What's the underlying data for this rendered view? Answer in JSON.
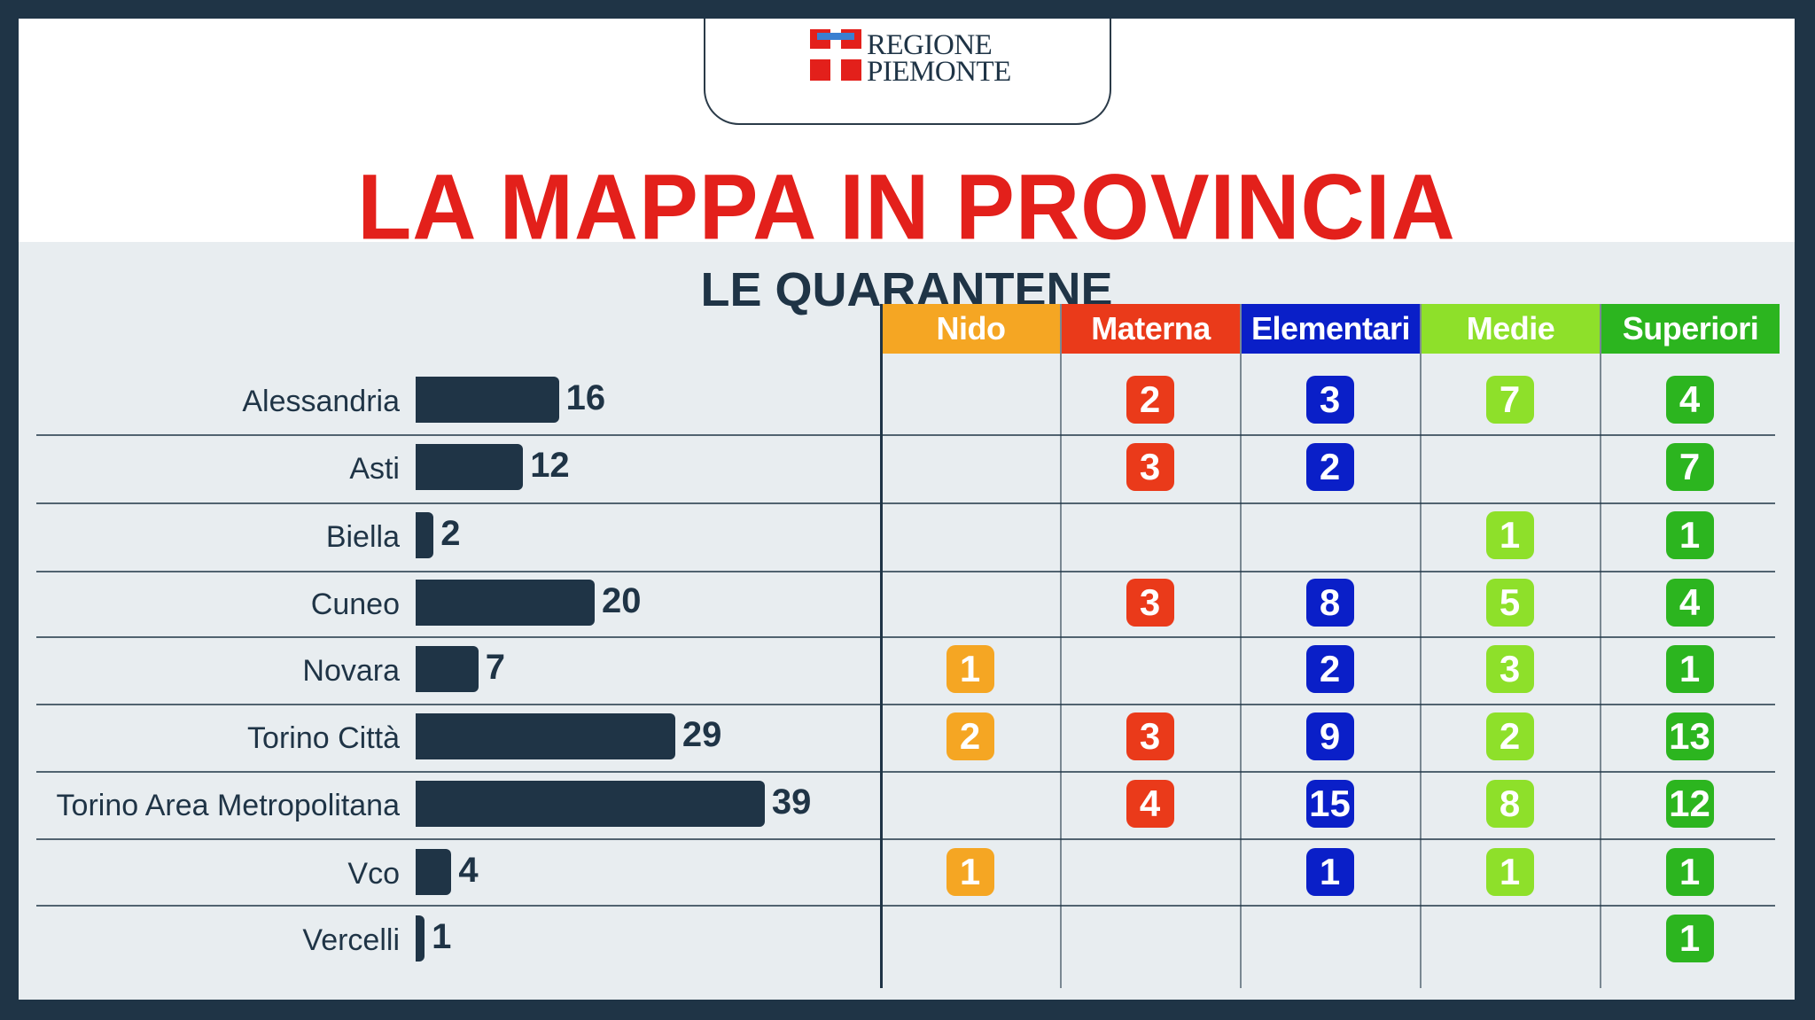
{
  "header": {
    "logo_line1": "REGIONE",
    "logo_line2": "PIEMONTE",
    "title": "LA MAPPA IN PROVINCIA",
    "subtitle": "LE QUARANTENE"
  },
  "colors": {
    "frame": "#1f3446",
    "title_red": "#e3201b",
    "bar": "#1f3446",
    "nido": "#f5a623",
    "materna": "#ea3a1a",
    "elementari": "#0a1fc8",
    "medie": "#8ee02a",
    "superiori": "#2cb51f"
  },
  "chart_data": {
    "type": "bar",
    "orientation": "horizontal",
    "categories": [
      "Alessandria",
      "Asti",
      "Biella",
      "Cuneo",
      "Novara",
      "Torino Città",
      "Torino Area Metropolitana",
      "Vco",
      "Vercelli"
    ],
    "values": [
      16,
      12,
      2,
      20,
      7,
      29,
      39,
      4,
      1
    ],
    "title": "LA MAPPA IN PROVINCIA",
    "subtitle": "LE QUARANTENE",
    "table": {
      "columns": [
        "Nido",
        "Materna",
        "Elementari",
        "Medie",
        "Superiori"
      ],
      "column_colors": [
        "#f5a623",
        "#ea3a1a",
        "#0a1fc8",
        "#8ee02a",
        "#2cb51f"
      ],
      "rows": [
        [
          null,
          2,
          3,
          7,
          4
        ],
        [
          null,
          3,
          2,
          null,
          7
        ],
        [
          null,
          null,
          null,
          1,
          1
        ],
        [
          null,
          3,
          8,
          5,
          4
        ],
        [
          1,
          null,
          2,
          3,
          1
        ],
        [
          2,
          3,
          9,
          2,
          13
        ],
        [
          null,
          4,
          15,
          8,
          12
        ],
        [
          1,
          null,
          1,
          1,
          1
        ],
        [
          null,
          null,
          null,
          null,
          1
        ]
      ]
    }
  }
}
